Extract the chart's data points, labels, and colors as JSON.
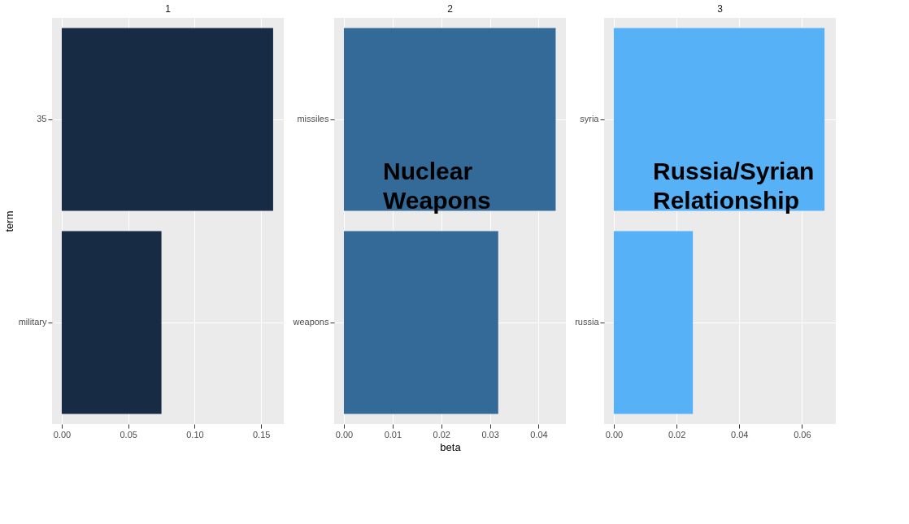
{
  "chart_data": [
    {
      "type": "bar",
      "orientation": "horizontal",
      "title": "1",
      "ylabel": "term",
      "categories": [
        "35",
        "military"
      ],
      "values": [
        0.159,
        0.075
      ],
      "color": "#172b44",
      "xlim": [
        -0.0073,
        0.167
      ],
      "xticks": [
        {
          "value": 0,
          "label": "0.00"
        },
        {
          "value": 0.05,
          "label": "0.05"
        },
        {
          "value": 0.1,
          "label": "0.10"
        },
        {
          "value": 0.15,
          "label": "0.15"
        }
      ],
      "grid": true
    },
    {
      "type": "bar",
      "orientation": "horizontal",
      "title": "2",
      "xlabel": "beta",
      "categories": [
        "missiles",
        "weapons"
      ],
      "values": [
        0.0435,
        0.0317
      ],
      "color": "#336a98",
      "xlim": [
        -0.002,
        0.0456
      ],
      "xticks": [
        {
          "value": 0,
          "label": "0.00"
        },
        {
          "value": 0.01,
          "label": "0.01"
        },
        {
          "value": 0.02,
          "label": "0.02"
        },
        {
          "value": 0.03,
          "label": "0.03"
        },
        {
          "value": 0.04,
          "label": "0.04"
        }
      ],
      "grid": true,
      "annotations": [
        "Nuclear Weapons"
      ]
    },
    {
      "type": "bar",
      "orientation": "horizontal",
      "title": "3",
      "categories": [
        "syria",
        "russia"
      ],
      "values": [
        0.0672,
        0.0252
      ],
      "color": "#56b1f7",
      "xlim": [
        -0.0031,
        0.0708
      ],
      "xticks": [
        {
          "value": 0,
          "label": "0.00"
        },
        {
          "value": 0.02,
          "label": "0.02"
        },
        {
          "value": 0.04,
          "label": "0.04"
        },
        {
          "value": 0.06,
          "label": "0.06"
        }
      ],
      "grid": true,
      "annotations": [
        "Russia/Syrian Relationship"
      ]
    }
  ]
}
